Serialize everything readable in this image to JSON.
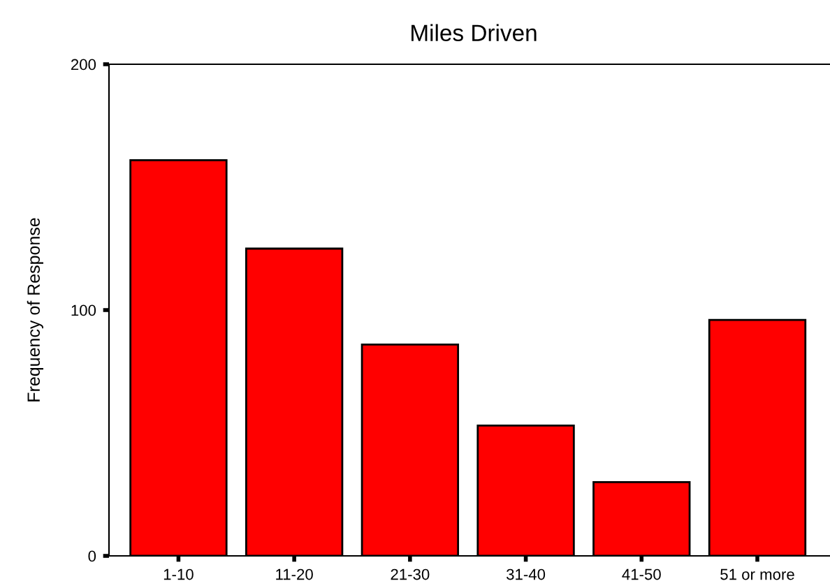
{
  "chart_data": {
    "type": "bar",
    "title": "Miles Driven",
    "ylabel": "Frequency of Response",
    "categories": [
      "1-10",
      "11-20",
      "21-30",
      "31-40",
      "41-50",
      "51 or more"
    ],
    "values": [
      161,
      125,
      86,
      53,
      30,
      96
    ],
    "color": "#ff0000",
    "ylim": [
      0,
      200
    ],
    "yticks": [
      0,
      100,
      200
    ],
    "grid": false
  }
}
